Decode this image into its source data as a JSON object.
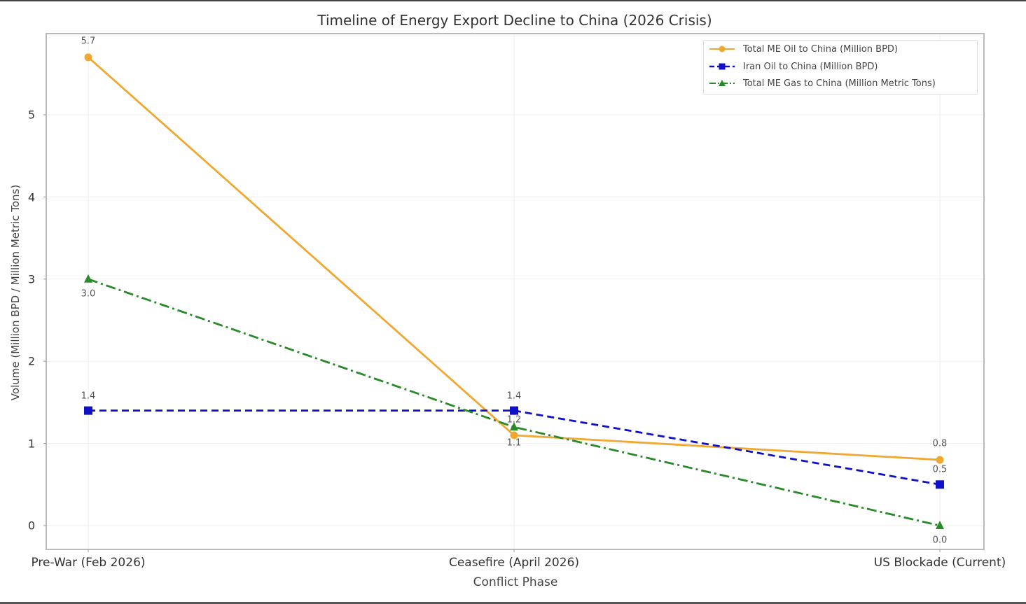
{
  "chart_data": {
    "type": "line",
    "title": "Timeline of Energy Export Decline to China (2026 Crisis)",
    "xlabel": "Conflict Phase",
    "ylabel": "Volume (Million BPD / Million Metric Tons)",
    "categories": [
      "Pre-War (Feb 2026)",
      "Ceasefire (April 2026)",
      "US Blockade (Current)"
    ],
    "yticks": [
      "0",
      "1",
      "2",
      "3",
      "4",
      "5"
    ],
    "ylim": [
      -0.3,
      5.9
    ],
    "grid": true,
    "legend_position": "upper right",
    "series": [
      {
        "name": "Total ME Oil to China (Million BPD)",
        "values": [
          5.7,
          1.1,
          0.8
        ],
        "labels": [
          "5.7",
          "1.1",
          "0.8"
        ],
        "color": "#f0a830",
        "linestyle": "solid",
        "marker": "circle"
      },
      {
        "name": "Iran Oil to China (Million BPD)",
        "values": [
          1.4,
          1.4,
          0.5
        ],
        "labels": [
          "1.4",
          "1.4",
          "0.5"
        ],
        "color": "#1010c8",
        "linestyle": "dashed",
        "marker": "square"
      },
      {
        "name": "Total ME Gas to China (Million Metric Tons)",
        "values": [
          3.0,
          1.2,
          0.0
        ],
        "labels": [
          "3.0",
          "1.2",
          "0.0"
        ],
        "color": "#2a8a2a",
        "linestyle": "dashdot",
        "marker": "triangle"
      }
    ]
  }
}
